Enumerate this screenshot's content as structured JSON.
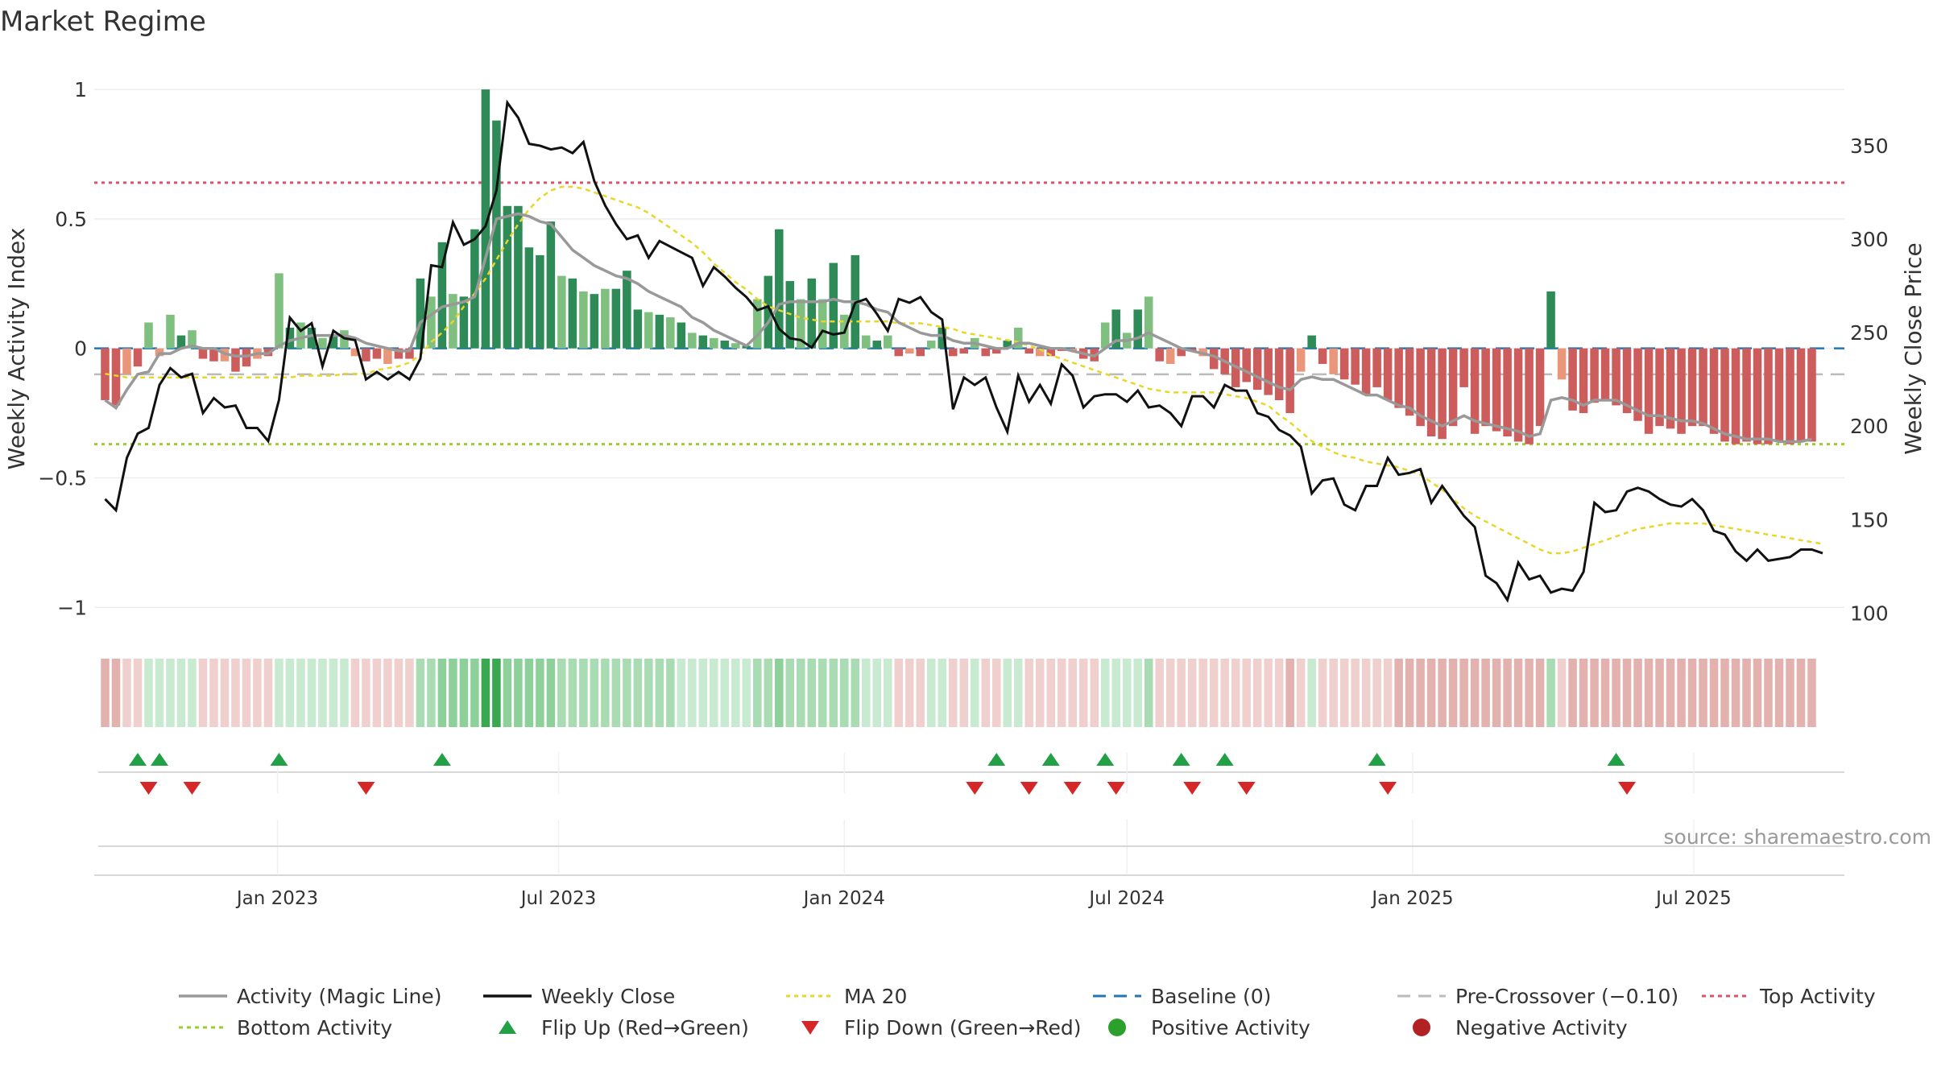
{
  "chart_data": {
    "type": "bar",
    "title": "Market Regime",
    "ylabel_left": "Weekly Activity Index",
    "ylabel_right": "Weekly Close Price",
    "source": "source: sharemaestro.com",
    "x_range": [
      "2022-09-05",
      "2025-10-06"
    ],
    "y_left_range": [
      -1.08,
      1.05
    ],
    "y_right_range": [
      92,
      387
    ],
    "y_left_ticks": [
      {
        "value": 1,
        "label": "1"
      },
      {
        "value": 0.5,
        "label": "0.5"
      },
      {
        "value": 0,
        "label": "0"
      },
      {
        "value": -0.5,
        "label": "−0.5"
      },
      {
        "value": -1,
        "label": "−1"
      }
    ],
    "y_right_ticks": [
      {
        "value": 350,
        "label": "350"
      },
      {
        "value": 300,
        "label": "300"
      },
      {
        "value": 250,
        "label": "250"
      },
      {
        "value": 200,
        "label": "200"
      },
      {
        "value": 150,
        "label": "150"
      },
      {
        "value": 100,
        "label": "100"
      }
    ],
    "x_ticks": [
      {
        "date": "2023-01-01",
        "label": "Jan 2023"
      },
      {
        "date": "2023-07-01",
        "label": "Jul 2023"
      },
      {
        "date": "2024-01-01",
        "label": "Jan 2024"
      },
      {
        "date": "2024-07-01",
        "label": "Jul 2024"
      },
      {
        "date": "2025-01-01",
        "label": "Jan 2025"
      },
      {
        "date": "2025-07-01",
        "label": "Jul 2025"
      }
    ],
    "reference_lines": {
      "baseline": 0,
      "pre_crossover": -0.1,
      "top_activity": 0.64,
      "bottom_activity": -0.37
    },
    "colors": {
      "strong_positive": "#2e8b57",
      "positive": "#7fbf7f",
      "strong_negative": "#cd5c5c",
      "negative": "#e9967a",
      "close": "#111111",
      "activity_line": "#999999",
      "ma20": "#e8d62a",
      "baseline": "#1f77b4",
      "pre_crossover": "#bbbbbb",
      "top_activity": "#e0506a",
      "bottom_activity": "#9acd32",
      "flip_up": "#22a045",
      "flip_down": "#d62728",
      "positive_dot": "#2ca02c",
      "negative_dot": "#b22222"
    },
    "activity_values": [
      -0.2,
      -0.22,
      -0.1,
      -0.07,
      0.1,
      -0.03,
      0.13,
      0.05,
      0.07,
      -0.04,
      -0.05,
      -0.05,
      -0.09,
      -0.07,
      -0.04,
      -0.03,
      0.29,
      0.08,
      0.1,
      0.08,
      0.04,
      0.05,
      0.07,
      -0.03,
      -0.05,
      -0.04,
      -0.06,
      -0.04,
      -0.04,
      0.27,
      0.2,
      0.41,
      0.21,
      0.2,
      0.46,
      1.0,
      0.88,
      0.55,
      0.55,
      0.39,
      0.36,
      0.49,
      0.28,
      0.27,
      0.22,
      0.21,
      0.23,
      0.23,
      0.3,
      0.15,
      0.14,
      0.13,
      0.12,
      0.1,
      0.06,
      0.05,
      0.04,
      0.03,
      0.02,
      0.01,
      0.19,
      0.28,
      0.46,
      0.26,
      0.19,
      0.27,
      0.19,
      0.33,
      0.13,
      0.36,
      0.05,
      0.03,
      0.05,
      -0.03,
      -0.02,
      -0.03,
      0.03,
      0.08,
      -0.03,
      -0.02,
      0.04,
      -0.03,
      -0.02,
      0.03,
      0.08,
      -0.02,
      -0.03,
      -0.03,
      -0.01,
      -0.01,
      -0.04,
      -0.05,
      0.1,
      0.15,
      0.06,
      0.15,
      0.2,
      -0.05,
      -0.06,
      -0.03,
      -0.01,
      -0.03,
      -0.08,
      -0.1,
      -0.15,
      -0.13,
      -0.16,
      -0.18,
      -0.2,
      -0.25,
      -0.09,
      0.05,
      -0.06,
      -0.1,
      -0.12,
      -0.14,
      -0.18,
      -0.15,
      -0.2,
      -0.23,
      -0.26,
      -0.3,
      -0.34,
      -0.35,
      -0.3,
      -0.15,
      -0.33,
      -0.3,
      -0.32,
      -0.34,
      -0.36,
      -0.37,
      -0.3,
      0.22,
      -0.12,
      -0.24,
      -0.25,
      -0.21,
      -0.2,
      -0.22,
      -0.25,
      -0.28,
      -0.33,
      -0.3,
      -0.31,
      -0.33,
      -0.3,
      -0.3,
      -0.33,
      -0.36,
      -0.37,
      -0.36,
      -0.37,
      -0.37,
      -0.36,
      -0.37,
      -0.36,
      -0.36
    ],
    "close_values": [
      161,
      155,
      183,
      196,
      199,
      222,
      231,
      226,
      228,
      207,
      215,
      210,
      211,
      199,
      199,
      192,
      214,
      258,
      251,
      255,
      232,
      251,
      247,
      246,
      225,
      229,
      225,
      229,
      225,
      236,
      286,
      285,
      309,
      297,
      300,
      307,
      326,
      373,
      365,
      351,
      350,
      348,
      349,
      346,
      352,
      331,
      318,
      308,
      300,
      302,
      290,
      299,
      296,
      293,
      290,
      275,
      285,
      280,
      274,
      269,
      262,
      264,
      252,
      247,
      246,
      242,
      251,
      249,
      250,
      266,
      268,
      260,
      251,
      268,
      266,
      269,
      261,
      257,
      209,
      226,
      222,
      226,
      210,
      197,
      227,
      213,
      222,
      212,
      233,
      227,
      210,
      216,
      217,
      217,
      213,
      219,
      210,
      211,
      207,
      200,
      216,
      216,
      210,
      222,
      219,
      219,
      207,
      205,
      198,
      195,
      189,
      164,
      171,
      172,
      158,
      155,
      168,
      168,
      183,
      174,
      175,
      177,
      159,
      168,
      160,
      152,
      146,
      120,
      116,
      107,
      127,
      118,
      120,
      111,
      113,
      112,
      122,
      159,
      154,
      155,
      165,
      167,
      165,
      161,
      158,
      157,
      161,
      155,
      144,
      142,
      133,
      128,
      134,
      128,
      129,
      130,
      134,
      134,
      132
    ],
    "activity_line_values": [
      -0.2,
      -0.23,
      -0.16,
      -0.1,
      -0.09,
      -0.02,
      -0.02,
      0,
      0.01,
      0,
      0,
      -0.02,
      -0.03,
      -0.03,
      -0.02,
      -0.02,
      0.01,
      0.03,
      0.04,
      0.05,
      0.05,
      0.05,
      0.05,
      0.04,
      0.02,
      0.01,
      0,
      -0.01,
      -0.01,
      0.1,
      0.13,
      0.16,
      0.17,
      0.18,
      0.2,
      0.35,
      0.5,
      0.51,
      0.52,
      0.51,
      0.49,
      0.48,
      0.43,
      0.38,
      0.35,
      0.32,
      0.3,
      0.28,
      0.27,
      0.25,
      0.22,
      0.2,
      0.18,
      0.16,
      0.12,
      0.1,
      0.07,
      0.05,
      0.03,
      0.01,
      0.05,
      0.1,
      0.17,
      0.18,
      0.18,
      0.18,
      0.18,
      0.19,
      0.18,
      0.18,
      0.17,
      0.15,
      0.14,
      0.1,
      0.08,
      0.06,
      0.05,
      0.05,
      0.03,
      0.02,
      0.02,
      0.01,
      0,
      0,
      0.02,
      0.02,
      0.01,
      0,
      0,
      -0.01,
      -0.02,
      -0.03,
      0,
      0.03,
      0.03,
      0.04,
      0.06,
      0.04,
      0.02,
      0,
      -0.01,
      -0.02,
      -0.03,
      -0.05,
      -0.07,
      -0.09,
      -0.11,
      -0.13,
      -0.15,
      -0.16,
      -0.12,
      -0.11,
      -0.12,
      -0.12,
      -0.14,
      -0.16,
      -0.18,
      -0.18,
      -0.2,
      -0.22,
      -0.23,
      -0.26,
      -0.28,
      -0.3,
      -0.28,
      -0.26,
      -0.28,
      -0.29,
      -0.3,
      -0.31,
      -0.32,
      -0.34,
      -0.33,
      -0.2,
      -0.19,
      -0.2,
      -0.22,
      -0.2,
      -0.2,
      -0.2,
      -0.22,
      -0.24,
      -0.26,
      -0.26,
      -0.27,
      -0.28,
      -0.28,
      -0.29,
      -0.31,
      -0.33,
      -0.34,
      -0.35,
      -0.35,
      -0.35,
      -0.36,
      -0.36,
      -0.36,
      -0.35
    ],
    "ma20_values": [
      228,
      227,
      226,
      226,
      226,
      226,
      226,
      226,
      226,
      226,
      226,
      226,
      226,
      226,
      226,
      226,
      226,
      226,
      227,
      227,
      227,
      227,
      228,
      228,
      228,
      230,
      231,
      232,
      234,
      238,
      245,
      250,
      256,
      264,
      271,
      279,
      289,
      299,
      308,
      316,
      322,
      326,
      328,
      328,
      327,
      325,
      323,
      321,
      319,
      317,
      314,
      310,
      306,
      302,
      298,
      293,
      287,
      282,
      277,
      273,
      268,
      264,
      262,
      260,
      258,
      257,
      256,
      256,
      256,
      256,
      256,
      256,
      256,
      255,
      255,
      255,
      254,
      253,
      252,
      250,
      249,
      248,
      247,
      246,
      245,
      243,
      241,
      238,
      236,
      234,
      232,
      230,
      228,
      226,
      224,
      222,
      220,
      219,
      218,
      218,
      218,
      218,
      218,
      217,
      216,
      215,
      213,
      211,
      206,
      202,
      197,
      192,
      189,
      186,
      184,
      183,
      181,
      180,
      179,
      178,
      176,
      174,
      170,
      166,
      161,
      156,
      152,
      149,
      146,
      143,
      140,
      137,
      134,
      132,
      132,
      133,
      135,
      137,
      139,
      141,
      143,
      145,
      146,
      147,
      148,
      148,
      148,
      148,
      147,
      146,
      145,
      144,
      143,
      142,
      141,
      140,
      139,
      138,
      137
    ],
    "regime_values": [
      -0.3,
      -0.3,
      -0.25,
      -0.2,
      0.12,
      0.12,
      0.2,
      0.2,
      0.15,
      -0.1,
      -0.15,
      -0.15,
      -0.15,
      -0.15,
      -0.15,
      -0.15,
      0.25,
      0.25,
      0.25,
      0.25,
      0.25,
      0.25,
      0.25,
      -0.15,
      -0.15,
      -0.15,
      -0.15,
      -0.15,
      -0.15,
      0.45,
      0.45,
      0.5,
      0.5,
      0.5,
      0.55,
      1.0,
      1.0,
      0.75,
      0.75,
      0.6,
      0.55,
      0.55,
      0.4,
      0.4,
      0.35,
      0.35,
      0.35,
      0.35,
      0.4,
      0.3,
      0.3,
      0.3,
      0.3,
      0.28,
      0.25,
      0.25,
      0.22,
      0.22,
      0.2,
      0.2,
      0.35,
      0.4,
      0.55,
      0.4,
      0.35,
      0.4,
      0.35,
      0.45,
      0.3,
      0.45,
      0.25,
      0.25,
      0.25,
      -0.1,
      -0.1,
      -0.1,
      0.12,
      0.15,
      -0.1,
      -0.1,
      0.15,
      -0.1,
      -0.1,
      0.12,
      0.15,
      -0.1,
      -0.1,
      -0.1,
      -0.1,
      -0.1,
      -0.1,
      -0.1,
      0.2,
      0.25,
      0.2,
      0.25,
      0.3,
      -0.1,
      -0.1,
      -0.1,
      -0.1,
      -0.1,
      -0.2,
      -0.2,
      -0.25,
      -0.25,
      -0.25,
      -0.25,
      -0.25,
      -0.3,
      -0.2,
      0.12,
      -0.2,
      -0.25,
      -0.25,
      -0.25,
      -0.25,
      -0.25,
      -0.25,
      -0.3,
      -0.3,
      -0.35,
      -0.35,
      -0.35,
      -0.35,
      -0.3,
      -0.35,
      -0.35,
      -0.35,
      -0.35,
      -0.35,
      -0.35,
      -0.35,
      0.35,
      -0.25,
      -0.3,
      -0.3,
      -0.3,
      -0.3,
      -0.3,
      -0.3,
      -0.3,
      -0.35,
      -0.35,
      -0.35,
      -0.35,
      -0.35,
      -0.35,
      -0.35,
      -0.4,
      -0.4,
      -0.4,
      -0.4,
      -0.4,
      -0.4,
      -0.4,
      -0.4,
      -0.4
    ],
    "flip_up_dates": [
      "2022-10-03",
      "2022-10-17",
      "2023-01-02",
      "2023-04-17",
      "2024-04-08",
      "2024-05-13",
      "2024-06-17",
      "2024-08-05",
      "2024-09-02",
      "2024-12-09",
      "2025-05-12"
    ],
    "flip_down_dates": [
      "2022-10-10",
      "2022-11-07",
      "2023-02-27",
      "2024-03-25",
      "2024-04-29",
      "2024-05-27",
      "2024-06-24",
      "2024-08-12",
      "2024-09-16",
      "2024-12-16",
      "2025-05-19"
    ],
    "legend": [
      {
        "label": "Activity (Magic Line)",
        "symbol": "line",
        "color": "#999999"
      },
      {
        "label": "Weekly Close",
        "symbol": "line",
        "color": "#111111"
      },
      {
        "label": "MA 20",
        "symbol": "dotted",
        "color": "#e8d62a"
      },
      {
        "label": "Baseline (0)",
        "symbol": "dashed",
        "color": "#1f77b4"
      },
      {
        "label": "Pre-Crossover (−0.10)",
        "symbol": "dashed",
        "color": "#bbbbbb"
      },
      {
        "label": "Top Activity",
        "symbol": "dotted",
        "color": "#e0506a"
      },
      {
        "label": "Bottom Activity",
        "symbol": "dotted",
        "color": "#9acd32"
      },
      {
        "label": "Flip Up (Red→Green)",
        "symbol": "triangle-up",
        "color": "#22a045"
      },
      {
        "label": "Flip Down (Green→Red)",
        "symbol": "triangle-down",
        "color": "#d62728"
      },
      {
        "label": "Positive Activity",
        "symbol": "dot",
        "color": "#2ca02c"
      },
      {
        "label": "Negative Activity",
        "symbol": "dot",
        "color": "#b22222"
      }
    ]
  }
}
